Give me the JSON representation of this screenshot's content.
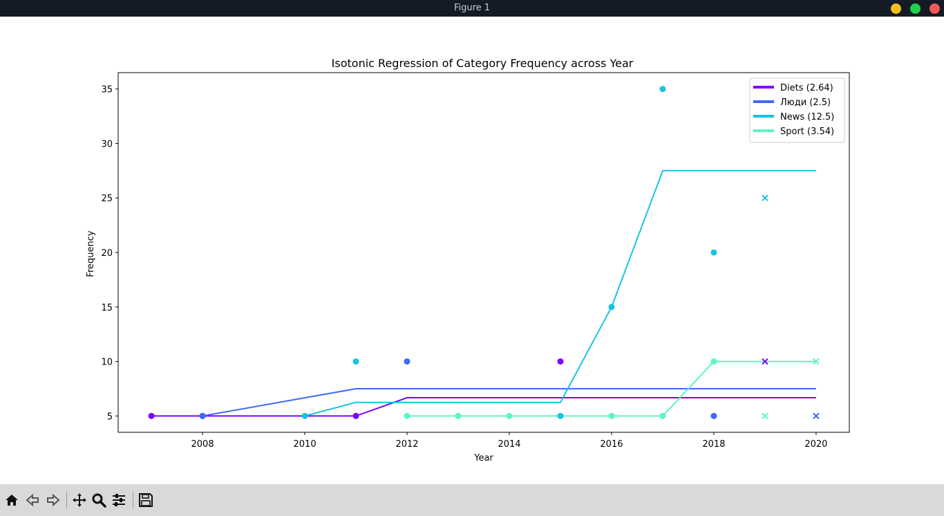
{
  "window": {
    "title": "Figure 1"
  },
  "colors": {
    "diets": "#7f00ff",
    "lyudi": "#3f69f6",
    "news": "#19c3e3",
    "sport": "#5cf5c4"
  },
  "toolbar": {
    "icons": [
      "home-icon",
      "back-icon",
      "forward-icon",
      "pan-icon",
      "zoom-icon",
      "configure-subplots-icon",
      "save-icon"
    ]
  },
  "chart_data": {
    "type": "scatter",
    "title": "Isotonic Regression of Category Frequency across Year",
    "xlabel": "Year",
    "ylabel": "Frequency",
    "xlim": [
      2006.35,
      2020.65
    ],
    "ylim": [
      3.5,
      36.5
    ],
    "xticks": [
      2008,
      2010,
      2012,
      2014,
      2016,
      2018,
      2020
    ],
    "yticks": [
      5,
      10,
      15,
      20,
      25,
      30,
      35
    ],
    "legend_position": "top-right",
    "series": [
      {
        "name": "Diets (2.64)",
        "key": "diets",
        "points": [
          [
            2007,
            5
          ],
          [
            2008,
            5
          ],
          [
            2011,
            5
          ],
          [
            2015,
            10
          ]
        ],
        "extrap": [
          [
            2019,
            10
          ]
        ],
        "fit": [
          [
            2007,
            5
          ],
          [
            2011,
            5
          ],
          [
            2012,
            6.67
          ],
          [
            2018,
            6.67
          ],
          [
            2020,
            6.67
          ]
        ]
      },
      {
        "name": "Люди (2.5)",
        "key": "lyudi",
        "points": [
          [
            2008,
            5
          ],
          [
            2012,
            10
          ],
          [
            2018,
            5
          ]
        ],
        "extrap": [
          [
            2020,
            5
          ]
        ],
        "fit": [
          [
            2008,
            5
          ],
          [
            2011,
            7.5
          ],
          [
            2018,
            7.5
          ],
          [
            2020,
            7.5
          ]
        ]
      },
      {
        "name": "News (12.5)",
        "key": "news",
        "points": [
          [
            2010,
            5
          ],
          [
            2011,
            10
          ],
          [
            2015,
            5
          ],
          [
            2016,
            15
          ],
          [
            2017,
            35
          ],
          [
            2018,
            20
          ]
        ],
        "extrap": [
          [
            2019,
            25
          ]
        ],
        "fit": [
          [
            2010,
            5
          ],
          [
            2011,
            6.25
          ],
          [
            2015,
            6.25
          ],
          [
            2016,
            15
          ],
          [
            2017,
            27.5
          ],
          [
            2020,
            27.5
          ]
        ]
      },
      {
        "name": "Sport (3.54)",
        "key": "sport",
        "points": [
          [
            2012,
            5
          ],
          [
            2013,
            5
          ],
          [
            2014,
            5
          ],
          [
            2016,
            5
          ],
          [
            2017,
            5
          ],
          [
            2018,
            10
          ]
        ],
        "extrap": [
          [
            2019,
            5
          ],
          [
            2020,
            10
          ]
        ],
        "fit": [
          [
            2012,
            5
          ],
          [
            2017,
            5
          ],
          [
            2018,
            10
          ],
          [
            2020,
            10
          ]
        ]
      }
    ]
  }
}
